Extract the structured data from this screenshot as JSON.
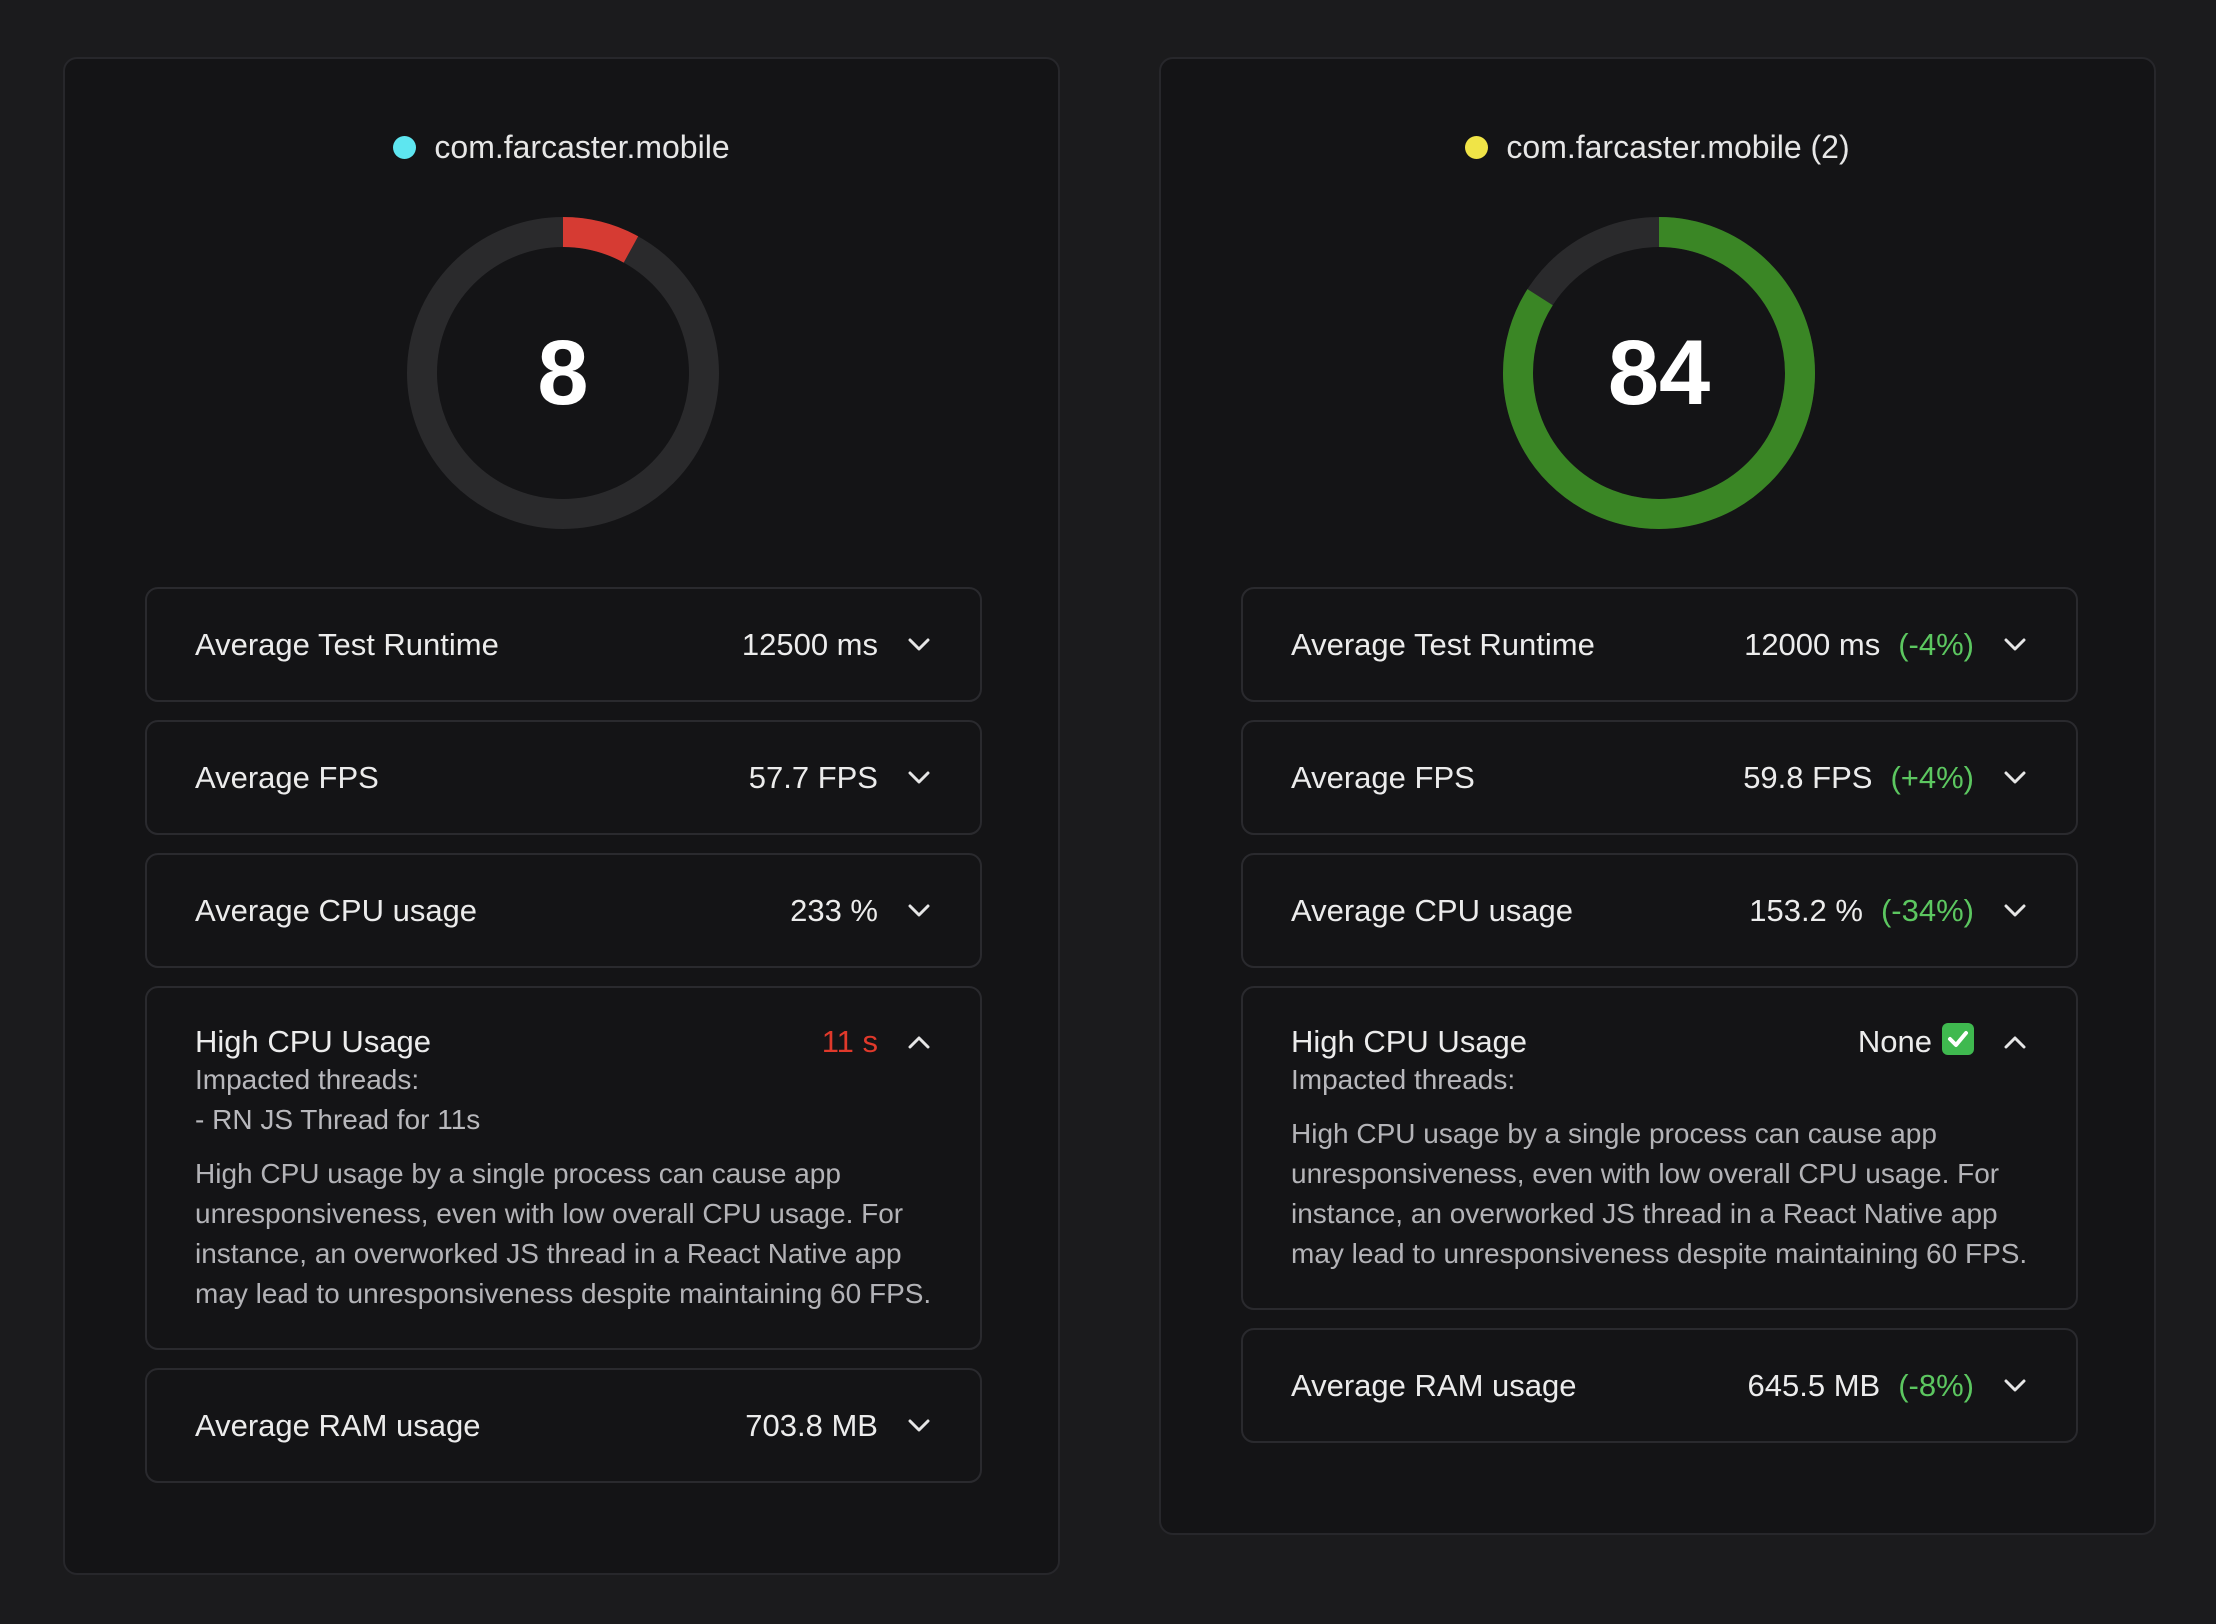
{
  "panels": [
    {
      "app_name": "com.farcaster.mobile",
      "dot_color": "#5ee6f0",
      "score": "8",
      "score_value": 8,
      "gauge_color": "#d63b33",
      "metrics": [
        {
          "label": "Average Test Runtime",
          "value": "12500 ms"
        },
        {
          "label": "Average FPS",
          "value": "57.7 FPS"
        },
        {
          "label": "Average CPU usage",
          "value": "233 %"
        }
      ],
      "high_cpu": {
        "label": "High CPU Usage",
        "value": "11 s",
        "impacted_label": "Impacted threads:",
        "thread_line": "- RN JS Thread for 11s",
        "description": "High CPU usage by a single process can cause app unresponsiveness, even with low overall CPU usage. For instance, an overworked JS thread in a React Native app may lead to unresponsiveness despite maintaining 60 FPS."
      },
      "ram": {
        "label": "Average RAM usage",
        "value": "703.8 MB"
      }
    },
    {
      "app_name": "com.farcaster.mobile (2)",
      "dot_color": "#f0e447",
      "score": "84",
      "score_value": 84,
      "gauge_color": "#3a8625",
      "metrics": [
        {
          "label": "Average Test Runtime",
          "value": "12000 ms",
          "delta": "(-4%)"
        },
        {
          "label": "Average FPS",
          "value": "59.8 FPS",
          "delta": "(+4%)"
        },
        {
          "label": "Average CPU usage",
          "value": "153.2 %",
          "delta": "(-34%)"
        }
      ],
      "high_cpu": {
        "label": "High CPU Usage",
        "value": "None",
        "impacted_label": "Impacted threads:",
        "description": "High CPU usage by a single process can cause app unresponsiveness, even with low overall CPU usage. For instance, an overworked JS thread in a React Native app may lead to unresponsiveness despite maintaining 60 FPS."
      },
      "ram": {
        "label": "Average RAM usage",
        "value": "645.5 MB",
        "delta": "(-8%)"
      }
    }
  ],
  "colors": {
    "background": "#1b1b1d",
    "panel": "#141416",
    "gauge_track": "#2a2a2c",
    "delta_green": "#5cc760",
    "alert_red": "#e0392b"
  },
  "icons": {
    "expand": "chevron-down-icon",
    "collapse": "chevron-up-icon",
    "status_ok": "check-mark-icon"
  }
}
